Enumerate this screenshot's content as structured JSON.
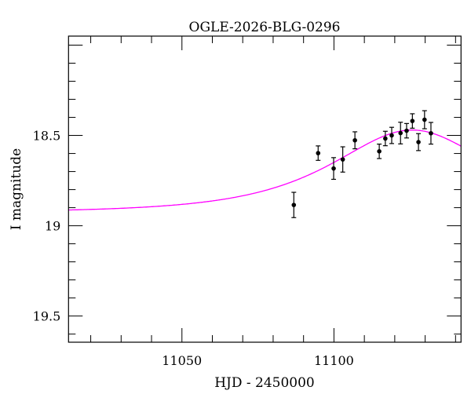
{
  "chart_data": {
    "type": "scatter",
    "title": "OGLE-2026-BLG-0296",
    "xlabel": "HJD - 2450000",
    "ylabel": "I magnitude",
    "xlim": [
      11012.7,
      11141.8
    ],
    "ylim": [
      19.645,
      17.95
    ],
    "y_inverted": true,
    "x_ticks": [
      11050,
      11100
    ],
    "x_tick_labels": [
      "11050",
      "11100"
    ],
    "x_minor_step": 10,
    "y_ticks": [
      18.5,
      19,
      19.5
    ],
    "y_tick_labels": [
      "18.5",
      "19",
      "19.5"
    ],
    "y_minor_step": 0.1,
    "grid": false,
    "series": [
      {
        "name": "data",
        "type": "errorbar",
        "color": "#000000",
        "x": [
          11086.8,
          11094.8,
          11099.9,
          11102.9,
          11106.9,
          11114.9,
          11116.9,
          11119.0,
          11121.9,
          11123.9,
          11125.8,
          11127.8,
          11129.8,
          11131.9
        ],
        "y": [
          18.885,
          18.598,
          18.683,
          18.633,
          18.527,
          18.588,
          18.517,
          18.5,
          18.487,
          18.474,
          18.42,
          18.537,
          18.413,
          18.488
        ],
        "err": [
          0.07,
          0.04,
          0.06,
          0.07,
          0.047,
          0.04,
          0.04,
          0.045,
          0.06,
          0.04,
          0.04,
          0.047,
          0.05,
          0.06
        ]
      },
      {
        "name": "model",
        "type": "line",
        "color": "#ff00ff",
        "model": "paczynski",
        "t0": 11125.7,
        "tE": 36,
        "u0": 0.807,
        "baseline_mag": 18.927
      }
    ]
  }
}
